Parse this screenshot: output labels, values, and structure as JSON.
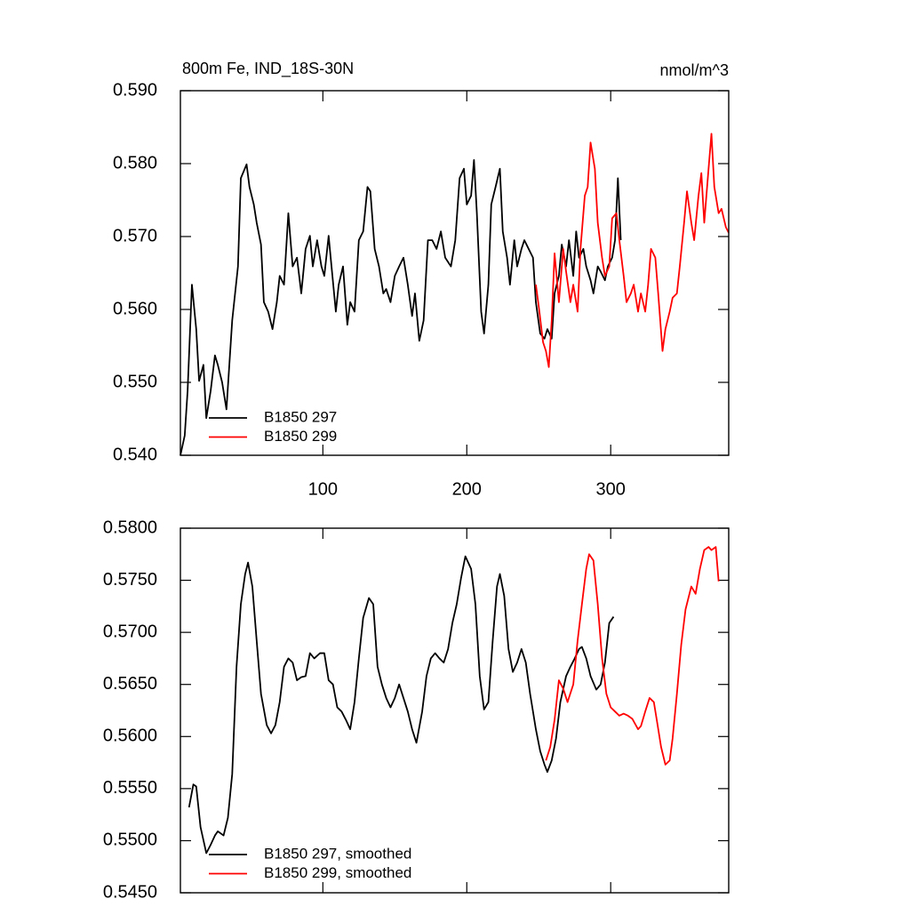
{
  "chart_data": [
    {
      "type": "line",
      "title": "800m Fe, IND_18S-30N",
      "units": "nmol/m^3",
      "xlim": [
        1,
        382
      ],
      "ylim": [
        0.54,
        0.59
      ],
      "xticks": [
        100,
        200,
        300
      ],
      "yticks": [
        {
          "value": 0.54,
          "label": "0.540"
        },
        {
          "value": 0.55,
          "label": "0.550"
        },
        {
          "value": 0.56,
          "label": "0.560"
        },
        {
          "value": 0.57,
          "label": "0.570"
        },
        {
          "value": 0.58,
          "label": "0.580"
        },
        {
          "value": 0.59,
          "label": "0.590"
        }
      ],
      "show_xtick_labels": true,
      "series": [
        {
          "name": "B1850 297",
          "color": "#000000",
          "x": [
            1,
            4,
            6,
            9,
            12,
            14,
            17,
            19,
            22,
            25,
            27,
            30,
            33,
            35,
            37,
            41,
            43,
            47,
            49,
            52,
            54,
            57,
            59,
            62,
            65,
            68,
            70,
            73,
            76,
            79,
            82,
            85,
            88,
            91,
            93,
            96,
            99,
            101,
            104,
            106,
            109,
            111,
            114,
            117,
            119,
            122,
            125,
            128,
            131,
            133,
            136,
            139,
            142,
            144,
            147,
            150,
            153,
            156,
            159,
            162,
            164,
            167,
            170,
            173,
            176,
            179,
            182,
            185,
            189,
            192,
            195,
            198,
            200,
            203,
            205,
            207,
            210,
            212,
            215,
            217,
            220,
            223,
            225,
            228,
            230,
            233,
            235,
            238,
            240,
            243,
            246,
            248,
            251,
            254,
            256,
            259,
            261,
            264,
            266,
            269,
            271,
            274,
            276,
            278,
            281,
            283,
            286,
            288,
            291,
            293,
            296,
            298,
            301,
            303,
            305,
            307
          ],
          "values": [
            0.54,
            0.5427,
            0.5488,
            0.5634,
            0.5573,
            0.5502,
            0.5524,
            0.5451,
            0.5488,
            0.5537,
            0.5524,
            0.55,
            0.5463,
            0.5524,
            0.5585,
            0.5659,
            0.578,
            0.5799,
            0.5768,
            0.5744,
            0.5719,
            0.5689,
            0.561,
            0.5597,
            0.5573,
            0.561,
            0.5646,
            0.5634,
            0.5732,
            0.5659,
            0.5671,
            0.5622,
            0.5683,
            0.5701,
            0.5659,
            0.5695,
            0.5659,
            0.5646,
            0.5701,
            0.5659,
            0.5597,
            0.5634,
            0.5659,
            0.5579,
            0.561,
            0.5597,
            0.5695,
            0.5707,
            0.5768,
            0.5762,
            0.5683,
            0.5659,
            0.5622,
            0.5628,
            0.561,
            0.5646,
            0.5659,
            0.5671,
            0.5634,
            0.5591,
            0.5622,
            0.5557,
            0.5585,
            0.5695,
            0.5695,
            0.5683,
            0.5707,
            0.5671,
            0.5659,
            0.5695,
            0.578,
            0.5793,
            0.5744,
            0.5756,
            0.5805,
            0.5732,
            0.5597,
            0.5567,
            0.5634,
            0.5744,
            0.5768,
            0.5793,
            0.5707,
            0.5671,
            0.5634,
            0.5695,
            0.5659,
            0.5683,
            0.5695,
            0.5683,
            0.5671,
            0.561,
            0.5567,
            0.556,
            0.5573,
            0.556,
            0.5622,
            0.5646,
            0.5689,
            0.5659,
            0.5695,
            0.5646,
            0.5707,
            0.5671,
            0.5683,
            0.5659,
            0.564,
            0.5622,
            0.5659,
            0.5652,
            0.564,
            0.5659,
            0.5671,
            0.5695,
            0.578,
            0.5695
          ]
        },
        {
          "name": "B1850 299",
          "color": "#ff0000",
          "x": [
            248,
            250,
            253,
            255,
            257,
            259,
            261,
            264,
            267,
            269,
            272,
            274,
            277,
            279,
            282,
            284,
            286,
            289,
            291,
            294,
            296,
            299,
            301,
            304,
            306,
            309,
            311,
            314,
            316,
            319,
            321,
            324,
            326,
            328,
            331,
            333,
            336,
            338,
            341,
            343,
            346,
            348,
            351,
            353,
            356,
            358,
            361,
            363,
            365,
            368,
            370,
            372,
            375,
            377,
            380,
            382
          ],
          "values": [
            0.5634,
            0.5604,
            0.5555,
            0.5543,
            0.5521,
            0.5585,
            0.5677,
            0.561,
            0.5683,
            0.5652,
            0.561,
            0.5634,
            0.5597,
            0.5683,
            0.5756,
            0.5768,
            0.5829,
            0.5793,
            0.5719,
            0.5671,
            0.5646,
            0.5659,
            0.5725,
            0.5732,
            0.5695,
            0.5646,
            0.561,
            0.5622,
            0.5634,
            0.5597,
            0.5622,
            0.5597,
            0.5634,
            0.5683,
            0.5671,
            0.5622,
            0.5543,
            0.5573,
            0.5597,
            0.5616,
            0.5622,
            0.5659,
            0.5719,
            0.5762,
            0.5719,
            0.5695,
            0.5756,
            0.5787,
            0.5719,
            0.5793,
            0.5841,
            0.5768,
            0.5732,
            0.5738,
            0.5713,
            0.5705
          ]
        }
      ]
    },
    {
      "type": "line",
      "xlim": [
        1,
        382
      ],
      "ylim": [
        0.545,
        0.58
      ],
      "xticks": [
        100,
        200,
        300
      ],
      "yticks": [
        {
          "value": 0.545,
          "label": "0.5450"
        },
        {
          "value": 0.55,
          "label": "0.5500"
        },
        {
          "value": 0.555,
          "label": "0.5550"
        },
        {
          "value": 0.56,
          "label": "0.5600"
        },
        {
          "value": 0.565,
          "label": "0.5650"
        },
        {
          "value": 0.57,
          "label": "0.5700"
        },
        {
          "value": 0.575,
          "label": "0.5750"
        },
        {
          "value": 0.58,
          "label": "0.5800"
        }
      ],
      "show_xtick_labels": false,
      "series": [
        {
          "name": "B1850 297, smoothed",
          "color": "#000000",
          "x": [
            7,
            10,
            12,
            15,
            19,
            22,
            25,
            27,
            31,
            34,
            37,
            40,
            43,
            46,
            48,
            51,
            54,
            57,
            61,
            64,
            67,
            70,
            73,
            76,
            79,
            82,
            85,
            88,
            91,
            94,
            98,
            101,
            104,
            107,
            110,
            113,
            116,
            119,
            122,
            125,
            128,
            132,
            135,
            138,
            141,
            144,
            147,
            150,
            153,
            156,
            159,
            162,
            165,
            169,
            172,
            175,
            178,
            181,
            184,
            187,
            190,
            193,
            196,
            199,
            203,
            206,
            209,
            212,
            215,
            218,
            221,
            223,
            226,
            229,
            232,
            235,
            238,
            241,
            244,
            248,
            251,
            254,
            256,
            259,
            262,
            265,
            269,
            272,
            275,
            278,
            280,
            283,
            286,
            290,
            293,
            296,
            299,
            302
          ],
          "values": [
            0.5532,
            0.5554,
            0.5552,
            0.5513,
            0.5488,
            0.5496,
            0.5505,
            0.5509,
            0.5505,
            0.5522,
            0.5564,
            0.5667,
            0.5727,
            0.5756,
            0.5767,
            0.5744,
            0.5692,
            0.5641,
            0.5611,
            0.5603,
            0.5611,
            0.5633,
            0.5667,
            0.5675,
            0.5671,
            0.5654,
            0.5657,
            0.5658,
            0.568,
            0.5675,
            0.568,
            0.568,
            0.5654,
            0.565,
            0.5628,
            0.5624,
            0.5616,
            0.5607,
            0.5633,
            0.5675,
            0.5714,
            0.5733,
            0.5727,
            0.5667,
            0.565,
            0.5637,
            0.5628,
            0.5637,
            0.565,
            0.5637,
            0.5624,
            0.5607,
            0.5594,
            0.5624,
            0.5658,
            0.5675,
            0.568,
            0.5675,
            0.5671,
            0.5684,
            0.5709,
            0.5727,
            0.5752,
            0.5773,
            0.5761,
            0.5727,
            0.5658,
            0.5626,
            0.5633,
            0.5692,
            0.5744,
            0.5756,
            0.5735,
            0.5684,
            0.5662,
            0.5671,
            0.5684,
            0.5671,
            0.5641,
            0.5607,
            0.5586,
            0.5573,
            0.5566,
            0.5577,
            0.5598,
            0.5633,
            0.5658,
            0.5667,
            0.5675,
            0.5684,
            0.5686,
            0.5675,
            0.5658,
            0.5645,
            0.565,
            0.5671,
            0.5709,
            0.5715
          ]
        },
        {
          "name": "B1850 299, smoothed",
          "color": "#ff0000",
          "x": [
            255,
            258,
            261,
            264,
            267,
            270,
            274,
            277,
            280,
            283,
            285,
            288,
            291,
            294,
            297,
            300,
            303,
            306,
            309,
            312,
            315,
            319,
            321,
            324,
            327,
            330,
            332,
            335,
            338,
            341,
            343,
            346,
            349,
            352,
            356,
            359,
            362,
            365,
            368,
            370,
            373,
            375
          ],
          "values": [
            0.5577,
            0.559,
            0.5616,
            0.5654,
            0.5646,
            0.5633,
            0.565,
            0.5692,
            0.5727,
            0.5761,
            0.5775,
            0.5769,
            0.5727,
            0.5675,
            0.5641,
            0.5628,
            0.5624,
            0.562,
            0.5622,
            0.562,
            0.5617,
            0.5607,
            0.561,
            0.5624,
            0.5637,
            0.5633,
            0.5616,
            0.559,
            0.5573,
            0.5577,
            0.5598,
            0.5641,
            0.5688,
            0.5722,
            0.5744,
            0.5737,
            0.5761,
            0.5779,
            0.5782,
            0.5779,
            0.5782,
            0.5749
          ]
        }
      ]
    }
  ]
}
